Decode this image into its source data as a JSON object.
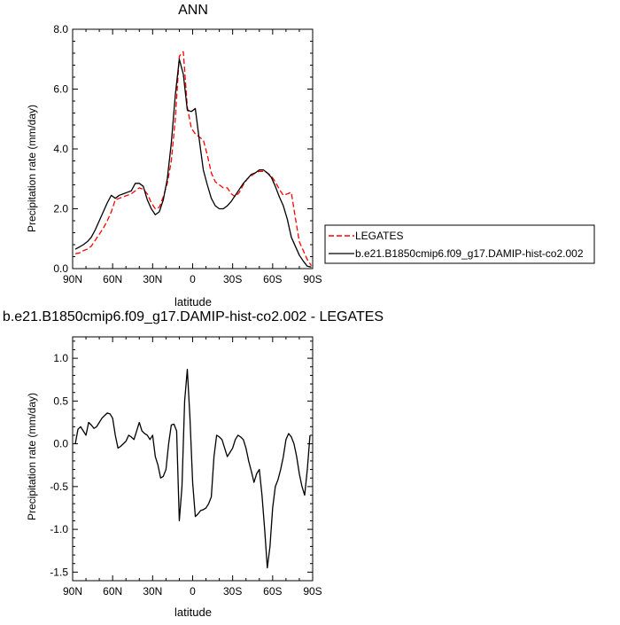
{
  "chart_data": [
    {
      "type": "line",
      "title": "ANN",
      "xlabel": "latitude",
      "ylabel": "Precipitation rate (mm/day)",
      "xlim": [
        90,
        -90
      ],
      "ylim": [
        0,
        8
      ],
      "x_ticks": [
        90,
        60,
        30,
        0,
        -30,
        -60,
        -90
      ],
      "x_tick_labels": [
        "90N",
        "60N",
        "30N",
        "0",
        "30S",
        "60S",
        "90S"
      ],
      "y_ticks": [
        0,
        2,
        4,
        6,
        8
      ],
      "y_tick_labels": [
        "0.0",
        "2.0",
        "4.0",
        "6.0",
        "8.0"
      ],
      "legend": {
        "placement": "right-outside"
      },
      "series": [
        {
          "name": "LEGATES",
          "color": "#ff0000",
          "dash": "dashed",
          "x": [
            88,
            85,
            82,
            79,
            76,
            73,
            70,
            67,
            64,
            61,
            58,
            55,
            52,
            49,
            46,
            43,
            40,
            37,
            34,
            31,
            28,
            25,
            22,
            19,
            16,
            13,
            10,
            7,
            4,
            1,
            -2,
            -5,
            -8,
            -11,
            -14,
            -17,
            -20,
            -23,
            -26,
            -29,
            -32,
            -35,
            -38,
            -41,
            -44,
            -47,
            -50,
            -53,
            -56,
            -59,
            -62,
            -65,
            -68,
            -71,
            -74,
            -77,
            -80,
            -83,
            -86,
            -89
          ],
          "y": [
            0.5,
            0.52,
            0.6,
            0.65,
            0.75,
            0.95,
            1.15,
            1.35,
            1.6,
            1.9,
            2.3,
            2.35,
            2.4,
            2.45,
            2.5,
            2.6,
            2.7,
            2.65,
            2.5,
            2.2,
            2.0,
            2.05,
            2.4,
            2.85,
            3.6,
            5.0,
            7.1,
            7.25,
            5.4,
            4.7,
            4.5,
            4.4,
            4.3,
            3.8,
            3.2,
            2.9,
            2.8,
            2.7,
            2.7,
            2.5,
            2.4,
            2.55,
            2.8,
            3.0,
            3.1,
            3.2,
            3.25,
            3.25,
            3.2,
            3.1,
            2.9,
            2.65,
            2.45,
            2.5,
            2.55,
            1.7,
            0.9,
            0.6,
            0.3,
            0.1
          ]
        },
        {
          "name": "b.e21.B1850cmip6.f09_g17.DAMIP-hist-co2.002",
          "color": "#000000",
          "dash": "solid",
          "x": [
            88,
            85,
            82,
            79,
            76,
            73,
            70,
            67,
            64,
            61,
            58,
            55,
            52,
            49,
            46,
            43,
            40,
            37,
            34,
            31,
            28,
            25,
            22,
            19,
            16,
            13,
            10,
            7,
            4,
            1,
            -2,
            -5,
            -8,
            -11,
            -14,
            -17,
            -20,
            -23,
            -26,
            -29,
            -32,
            -35,
            -38,
            -41,
            -44,
            -47,
            -50,
            -53,
            -56,
            -59,
            -62,
            -65,
            -68,
            -71,
            -74,
            -77,
            -80,
            -83,
            -86,
            -89
          ],
          "y": [
            0.65,
            0.72,
            0.8,
            0.9,
            1.05,
            1.3,
            1.6,
            1.9,
            2.2,
            2.45,
            2.35,
            2.45,
            2.5,
            2.55,
            2.6,
            2.85,
            2.85,
            2.75,
            2.3,
            2.0,
            1.8,
            1.9,
            2.3,
            3.0,
            4.2,
            5.8,
            7.0,
            6.5,
            5.3,
            5.25,
            5.35,
            4.3,
            3.3,
            2.8,
            2.35,
            2.1,
            2.0,
            2.0,
            2.1,
            2.25,
            2.45,
            2.65,
            2.85,
            3.0,
            3.15,
            3.2,
            3.3,
            3.3,
            3.2,
            3.05,
            2.75,
            2.4,
            2.1,
            1.65,
            1.05,
            0.75,
            0.45,
            0.25,
            0.08,
            0.05
          ]
        }
      ]
    },
    {
      "type": "line",
      "title": "b.e21.B1850cmip6.f09_g17.DAMIP-hist-co2.002 - LEGATES",
      "xlabel": "latitude",
      "ylabel": "Precipitation rate (mm/day)",
      "xlim": [
        90,
        -90
      ],
      "ylim": [
        -1.6,
        1.25
      ],
      "x_ticks": [
        90,
        60,
        30,
        0,
        -30,
        -60,
        -90
      ],
      "x_tick_labels": [
        "90N",
        "60N",
        "30N",
        "0",
        "30S",
        "60S",
        "90S"
      ],
      "y_ticks": [
        1.0,
        0.5,
        0.0,
        -0.5,
        -1.0,
        -1.5
      ],
      "y_tick_labels": [
        "1.0",
        "0.5",
        "0.0",
        "-0.5",
        "-1.0",
        "-1.5"
      ],
      "series": [
        {
          "color": "#000000",
          "dash": "solid",
          "x": [
            88,
            86,
            84,
            82,
            80,
            78,
            76,
            74,
            72,
            70,
            68,
            66,
            64,
            62,
            60,
            58,
            56,
            54,
            52,
            50,
            48,
            46,
            44,
            42,
            40,
            38,
            36,
            34,
            32,
            30,
            28,
            26,
            24,
            22,
            20,
            18,
            16,
            14,
            12,
            10,
            8,
            6,
            4,
            2,
            0,
            -2,
            -4,
            -6,
            -8,
            -10,
            -12,
            -14,
            -16,
            -18,
            -20,
            -22,
            -24,
            -26,
            -28,
            -30,
            -32,
            -34,
            -36,
            -38,
            -40,
            -42,
            -44,
            -46,
            -48,
            -50,
            -52,
            -54,
            -56,
            -58,
            -60,
            -62,
            -64,
            -66,
            -68,
            -70,
            -72,
            -74,
            -76,
            -78,
            -80,
            -82,
            -84,
            -86,
            -88
          ],
          "y": [
            0.0,
            0.17,
            0.2,
            0.15,
            0.1,
            0.25,
            0.22,
            0.18,
            0.2,
            0.25,
            0.3,
            0.33,
            0.36,
            0.35,
            0.3,
            0.1,
            -0.05,
            -0.03,
            0.0,
            0.03,
            0.1,
            0.08,
            0.05,
            0.15,
            0.25,
            0.15,
            0.12,
            0.1,
            0.05,
            0.1,
            -0.15,
            -0.25,
            -0.4,
            -0.38,
            -0.3,
            0.0,
            0.22,
            0.23,
            0.15,
            -0.9,
            -0.5,
            0.5,
            0.87,
            0.3,
            -0.45,
            -0.85,
            -0.82,
            -0.78,
            -0.77,
            -0.75,
            -0.7,
            -0.62,
            -0.15,
            0.1,
            0.08,
            0.05,
            -0.05,
            -0.15,
            -0.1,
            -0.05,
            0.05,
            0.1,
            0.08,
            0.05,
            -0.05,
            -0.2,
            -0.32,
            -0.45,
            -0.35,
            -0.3,
            -0.6,
            -1.0,
            -1.45,
            -1.2,
            -0.75,
            -0.5,
            -0.42,
            -0.3,
            -0.15,
            0.05,
            0.12,
            0.08,
            0.0,
            -0.15,
            -0.35,
            -0.5,
            -0.6,
            -0.3,
            0.1
          ]
        }
      ]
    }
  ]
}
